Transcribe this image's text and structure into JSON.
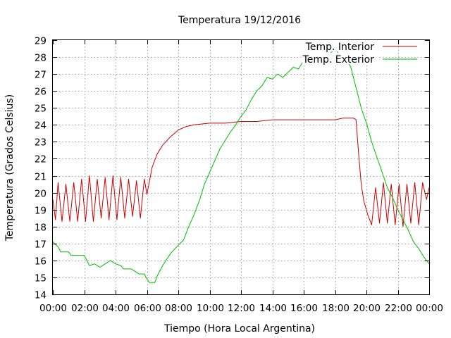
{
  "chart_data": {
    "type": "line",
    "title": "Temperatura 19/12/2016",
    "xlabel": "Tiempo (Hora Local Argentina)",
    "ylabel": "Temperatura (Grados Celsius)",
    "ylim": [
      14,
      29
    ],
    "xlim": [
      "00:00",
      "24:00"
    ],
    "grid": true,
    "legend_position": "top-right",
    "x_tick_labels": [
      "00:00",
      "02:00",
      "04:00",
      "06:00",
      "08:00",
      "10:00",
      "12:00",
      "14:00",
      "16:00",
      "18:00",
      "20:00",
      "22:00",
      "00:00"
    ],
    "y_tick_labels": [
      "14",
      "15",
      "16",
      "17",
      "18",
      "19",
      "20",
      "21",
      "22",
      "23",
      "24",
      "25",
      "26",
      "27",
      "28",
      "29"
    ],
    "series": [
      {
        "name": "Temp. Interior",
        "color": "#cc0000",
        "points": [
          [
            "00:00",
            19.6
          ],
          [
            "00:10",
            18.4
          ],
          [
            "00:20",
            20.6
          ],
          [
            "00:35",
            18.3
          ],
          [
            "00:50",
            20.5
          ],
          [
            "01:05",
            18.3
          ],
          [
            "01:20",
            20.6
          ],
          [
            "01:35",
            18.3
          ],
          [
            "01:50",
            20.8
          ],
          [
            "02:05",
            18.3
          ],
          [
            "02:20",
            21.0
          ],
          [
            "02:35",
            18.3
          ],
          [
            "02:50",
            20.8
          ],
          [
            "03:05",
            18.5
          ],
          [
            "03:20",
            20.9
          ],
          [
            "03:35",
            18.4
          ],
          [
            "03:50",
            21.0
          ],
          [
            "04:05",
            18.4
          ],
          [
            "04:20",
            20.9
          ],
          [
            "04:35",
            18.5
          ],
          [
            "04:50",
            20.8
          ],
          [
            "05:05",
            18.6
          ],
          [
            "05:20",
            20.7
          ],
          [
            "05:35",
            18.5
          ],
          [
            "05:50",
            20.8
          ],
          [
            "06:00",
            19.9
          ],
          [
            "06:20",
            21.5
          ],
          [
            "06:40",
            22.3
          ],
          [
            "07:00",
            22.8
          ],
          [
            "07:30",
            23.3
          ],
          [
            "08:00",
            23.7
          ],
          [
            "08:30",
            23.9
          ],
          [
            "09:00",
            24.0
          ],
          [
            "10:00",
            24.1
          ],
          [
            "11:00",
            24.1
          ],
          [
            "12:00",
            24.2
          ],
          [
            "13:00",
            24.2
          ],
          [
            "14:00",
            24.3
          ],
          [
            "16:00",
            24.3
          ],
          [
            "18:00",
            24.3
          ],
          [
            "18:30",
            24.4
          ],
          [
            "19:10",
            24.4
          ],
          [
            "19:20",
            24.3
          ],
          [
            "19:30",
            22.3
          ],
          [
            "19:40",
            20.5
          ],
          [
            "19:50",
            19.5
          ],
          [
            "20:05",
            18.7
          ],
          [
            "20:20",
            18.1
          ],
          [
            "20:35",
            20.3
          ],
          [
            "20:50",
            18.2
          ],
          [
            "21:05",
            20.6
          ],
          [
            "21:20",
            18.2
          ],
          [
            "21:35",
            20.5
          ],
          [
            "21:50",
            18.1
          ],
          [
            "22:05",
            20.5
          ],
          [
            "22:20",
            18.0
          ],
          [
            "22:35",
            20.5
          ],
          [
            "22:50",
            18.2
          ],
          [
            "23:05",
            20.6
          ],
          [
            "23:20",
            18.1
          ],
          [
            "23:35",
            20.6
          ],
          [
            "23:50",
            19.6
          ],
          [
            "24:00",
            20.3
          ]
        ]
      },
      {
        "name": "Temp. Exterior",
        "color": "#00bb00",
        "points": [
          [
            "00:00",
            17.1
          ],
          [
            "00:20",
            16.8
          ],
          [
            "00:30",
            16.5
          ],
          [
            "01:00",
            16.5
          ],
          [
            "01:10",
            16.3
          ],
          [
            "02:00",
            16.3
          ],
          [
            "02:10",
            16.0
          ],
          [
            "02:20",
            15.7
          ],
          [
            "02:40",
            15.8
          ],
          [
            "03:00",
            15.6
          ],
          [
            "03:20",
            15.8
          ],
          [
            "03:40",
            16.0
          ],
          [
            "04:00",
            15.8
          ],
          [
            "04:20",
            15.7
          ],
          [
            "04:30",
            15.5
          ],
          [
            "05:00",
            15.5
          ],
          [
            "05:30",
            15.2
          ],
          [
            "05:50",
            15.2
          ],
          [
            "06:00",
            14.9
          ],
          [
            "06:10",
            14.7
          ],
          [
            "06:30",
            14.7
          ],
          [
            "06:40",
            15.1
          ],
          [
            "07:00",
            15.7
          ],
          [
            "07:30",
            16.4
          ],
          [
            "08:00",
            16.9
          ],
          [
            "08:20",
            17.2
          ],
          [
            "08:40",
            18.0
          ],
          [
            "09:00",
            18.7
          ],
          [
            "09:20",
            19.5
          ],
          [
            "09:40",
            20.5
          ],
          [
            "10:00",
            21.2
          ],
          [
            "10:20",
            21.9
          ],
          [
            "10:40",
            22.6
          ],
          [
            "11:00",
            23.1
          ],
          [
            "11:20",
            23.6
          ],
          [
            "11:40",
            24.0
          ],
          [
            "12:00",
            24.5
          ],
          [
            "12:20",
            24.9
          ],
          [
            "12:40",
            25.5
          ],
          [
            "13:00",
            26.0
          ],
          [
            "13:20",
            26.3
          ],
          [
            "13:40",
            26.8
          ],
          [
            "14:00",
            26.7
          ],
          [
            "14:20",
            27.0
          ],
          [
            "14:40",
            26.8
          ],
          [
            "15:00",
            27.1
          ],
          [
            "15:20",
            27.4
          ],
          [
            "15:40",
            27.3
          ],
          [
            "16:00",
            27.8
          ],
          [
            "16:20",
            27.6
          ],
          [
            "16:40",
            27.8
          ],
          [
            "17:00",
            28.1
          ],
          [
            "17:20",
            27.8
          ],
          [
            "17:40",
            28.2
          ],
          [
            "18:00",
            28.5
          ],
          [
            "18:20",
            28.1
          ],
          [
            "18:40",
            28.0
          ],
          [
            "19:00",
            27.4
          ],
          [
            "19:20",
            26.2
          ],
          [
            "19:40",
            25.0
          ],
          [
            "20:00",
            24.1
          ],
          [
            "20:20",
            23.0
          ],
          [
            "20:40",
            22.1
          ],
          [
            "21:00",
            21.2
          ],
          [
            "21:20",
            20.3
          ],
          [
            "21:40",
            19.7
          ],
          [
            "22:00",
            19.0
          ],
          [
            "22:20",
            18.4
          ],
          [
            "22:40",
            17.8
          ],
          [
            "23:00",
            17.1
          ],
          [
            "23:20",
            16.7
          ],
          [
            "23:40",
            16.2
          ],
          [
            "24:00",
            15.8
          ]
        ]
      }
    ]
  }
}
